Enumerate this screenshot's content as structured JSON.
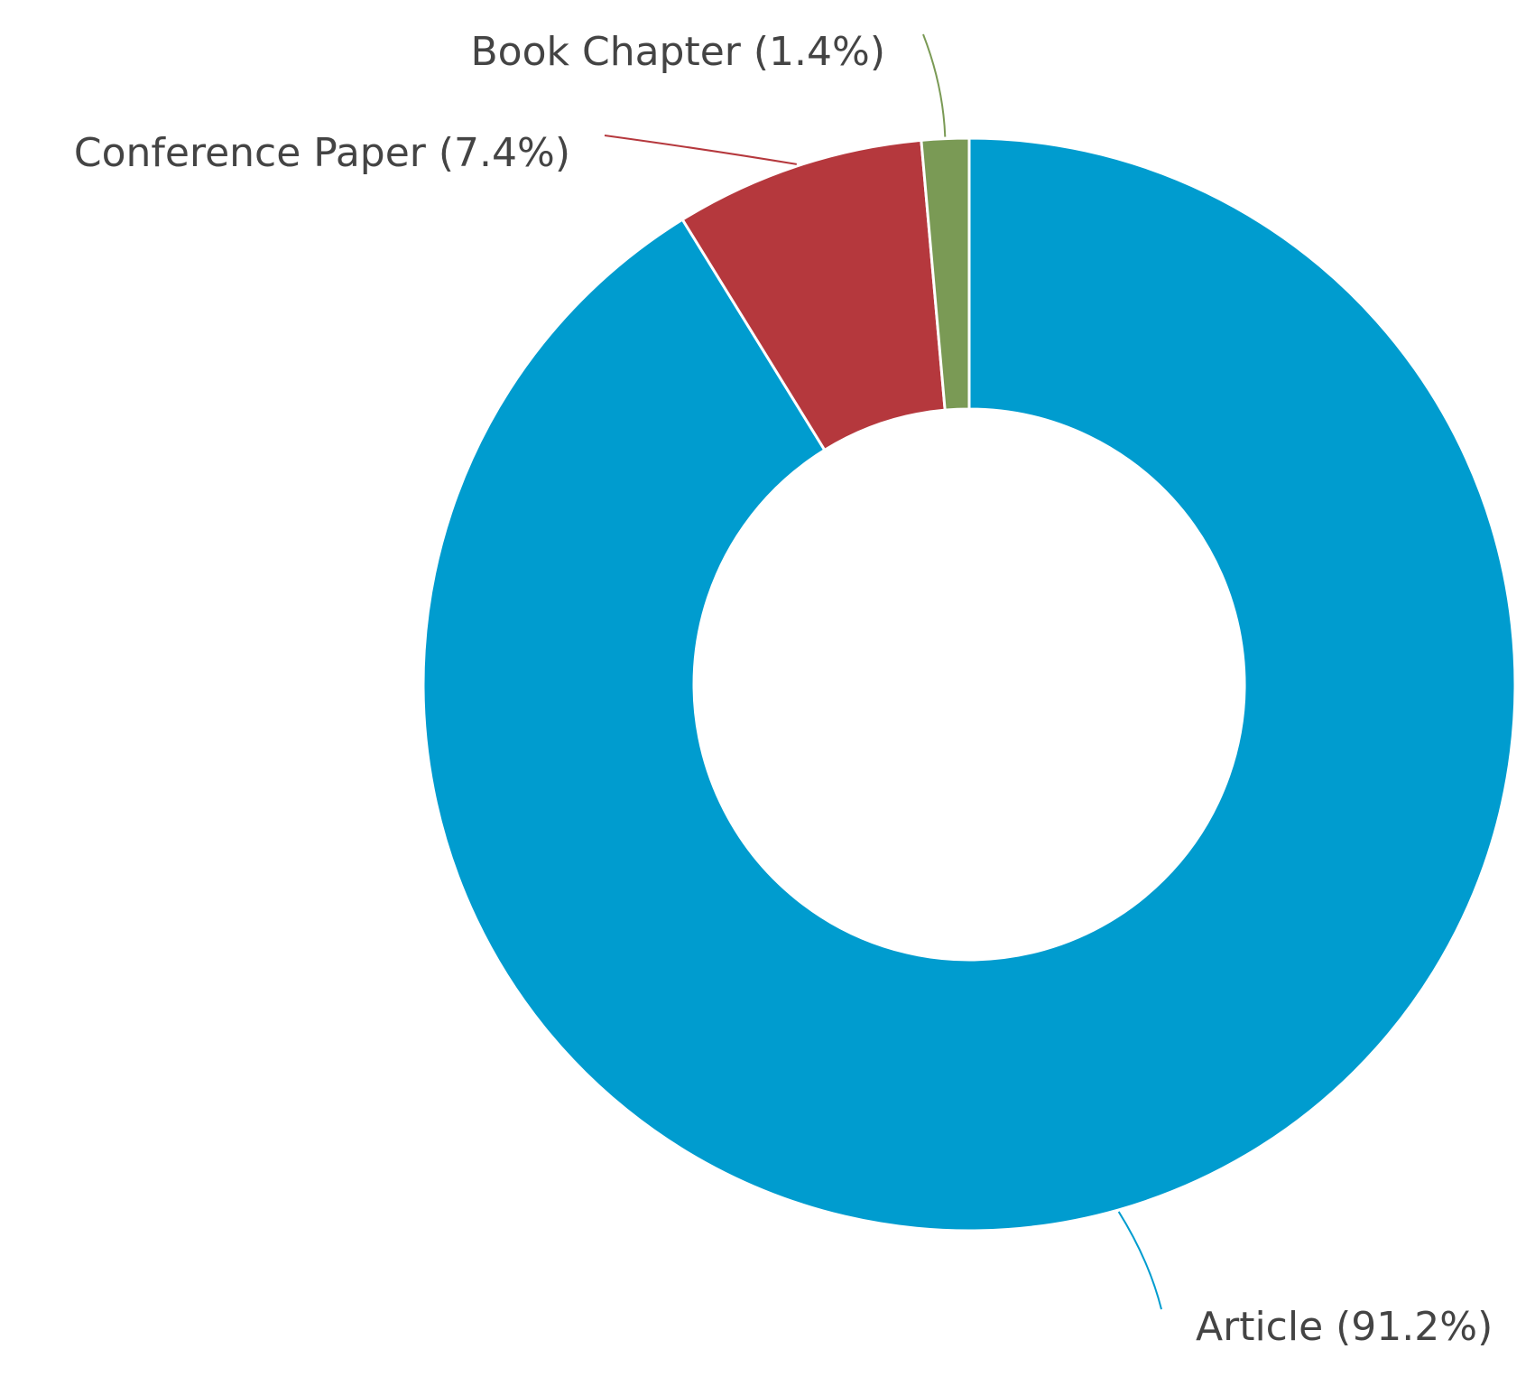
{
  "chart_data": {
    "type": "donut",
    "values": [
      91.2,
      7.4,
      1.4
    ],
    "value_labels": [
      "Article (91.2%)",
      "Conference Paper (7.4%)",
      "Book Chapter (1.4%)"
    ],
    "colors": [
      "#009ccf",
      "#b5383d",
      "#7a9a55"
    ]
  }
}
